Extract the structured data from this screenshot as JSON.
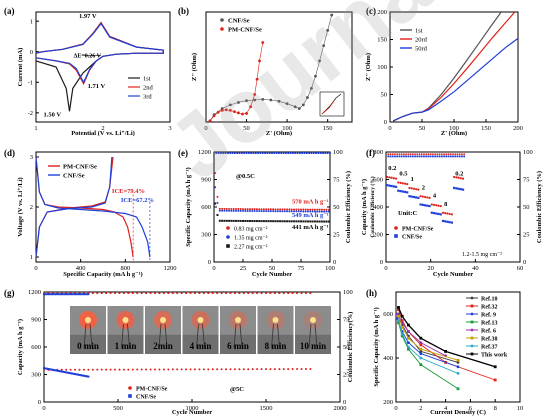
{
  "colors": {
    "black": "#1a1a1a",
    "red": "#e0201b",
    "blue": "#1f3fd8",
    "gray": "#555555"
  },
  "watermark": "Journal",
  "panels": {
    "a": {
      "letter": "(a)",
      "ylabel": "Current (mA)",
      "xlabel": "Potential (V vs. Li⁺/Li)",
      "yticks": [
        "-2",
        "-1",
        "0",
        "1"
      ],
      "xticks": [
        "1",
        "2",
        "3"
      ],
      "ann_top": "1.97 V",
      "ann_delta": "ΔE=0.26 V",
      "ann_low1": "1.50 V",
      "ann_low2": "1.71 V",
      "legend": [
        "1st",
        "2nd",
        "3rd"
      ]
    },
    "b": {
      "letter": "(b)",
      "ylabel": "Z'' (Ohm)",
      "xlabel": "Z' (Ohm)",
      "xticks": [
        "0",
        "50",
        "100",
        "150"
      ],
      "legend": [
        "CNF/Se",
        "PM-CNF/Se"
      ]
    },
    "c": {
      "letter": "(c)",
      "ylabel": "Z'' (Ohm)",
      "xlabel": "Z' (Ohm)",
      "xticks": [
        "0",
        "50",
        "100",
        "150",
        "200"
      ],
      "yticks": [
        "0",
        "50",
        "100",
        "150",
        "200"
      ],
      "legend": [
        "1st",
        "20rd",
        "50rd"
      ]
    },
    "d": {
      "letter": "(d)",
      "ylabel": "Voltage (V vs. Li⁺/Li)",
      "xlabel": "Specific Capacity (mA h g⁻¹)",
      "xticks": [
        "0",
        "400",
        "800",
        "1200"
      ],
      "yticks": [
        "1",
        "2",
        "3"
      ],
      "legend": [
        "PM-CNF/Se",
        "CNF/Se"
      ],
      "ice_red": "ICE=79.4%",
      "ice_blue": "ICE=67.2%"
    },
    "e": {
      "letter": "(e)",
      "ylabel": "Specific Capacity (mA h g⁻¹)",
      "ylabel_r": "Coulombic Efficiency (%)",
      "xlabel": "Cycle Number",
      "xticks": [
        "0",
        "25",
        "50",
        "75",
        "100"
      ],
      "yticks": [
        "0",
        "300",
        "600",
        "900",
        "1200"
      ],
      "yticks_r": [
        "0",
        "25",
        "50",
        "75",
        "100"
      ],
      "rate": "@0.5C",
      "ann_570": "570 mA h g⁻¹",
      "ann_549": "549 mA h g⁻¹",
      "ann_441": "441 mA h g⁻¹",
      "legend": [
        "0.83 mg cm⁻²",
        "1.35 mg cm⁻²",
        "2.27 mg cm⁻²"
      ]
    },
    "f": {
      "letter": "(f)",
      "ylabel": "Capacity (mA h g⁻¹)",
      "ylabel_l": "Coulombic Efficiency (%)",
      "ylabel_r": "Coulombic Efficiency (%)",
      "xlabel": "Cycle Number",
      "xticks": [
        "0",
        "20",
        "40",
        "60"
      ],
      "yticks": [
        "0",
        "200",
        "400",
        "600",
        "800"
      ],
      "yticks_r": [
        "0",
        "25",
        "50",
        "75",
        "100"
      ],
      "unit": "Unit:C",
      "loading": "1.2-1.5 mg cm⁻²",
      "rates": [
        "0.2",
        "0.5",
        "1",
        "2",
        "4",
        "8",
        "0.2"
      ],
      "legend": [
        "PM-CNF/Se",
        "CNF/Se"
      ]
    },
    "g": {
      "letter": "(g)",
      "ylabel": "Capacity (mA h g⁻¹)",
      "ylabel_r": "Coulombic Efficiency(%)",
      "xlabel": "Cycle Number",
      "xticks": [
        "0",
        "500",
        "1000",
        "1500",
        "2000"
      ],
      "yticks": [
        "0",
        "300",
        "600",
        "900",
        "1200"
      ],
      "yticks_r": [
        "0",
        "25",
        "50",
        "75",
        "100"
      ],
      "legend": [
        "PM-CNF/Se",
        "CNF/Se"
      ],
      "rate": "@5C",
      "photo_labels": [
        "0 min",
        "1 min",
        "2min",
        "4 min",
        "6 min",
        "8 min",
        "10 min"
      ]
    },
    "h": {
      "letter": "(h)",
      "ylabel": "Specific Capacity (mA h g⁻¹)",
      "xlabel": "Current Density (C)",
      "xticks": [
        "0",
        "2",
        "4",
        "6",
        "8",
        "10"
      ],
      "yticks": [
        "200",
        "400",
        "600"
      ],
      "legend": [
        "Ref.10",
        "Ref.32",
        "Ref. 9",
        "Ref.13",
        "Ref. 6",
        "Ref.38",
        "Ref.37",
        "This work"
      ],
      "legend_colors": [
        "#3a3a3a",
        "#e0201b",
        "#1f3fd8",
        "#1a9e3a",
        "#9b30b0",
        "#c8a000",
        "#2aa7c9",
        "#000000"
      ]
    }
  },
  "chart_data": [
    {
      "panel": "a",
      "type": "line",
      "xlabel": "Potential (V vs. Li⁺/Li)",
      "ylabel": "Current (mA)",
      "xlim": [
        1,
        3
      ],
      "ylim": [
        -2.3,
        1.3
      ],
      "series": [
        {
          "name": "1st",
          "x": [
            1.0,
            1.3,
            1.45,
            1.5,
            1.55,
            1.7,
            1.8,
            1.9,
            2.0,
            2.2,
            2.5,
            2.7,
            2.9,
            2.9,
            2.5,
            2.1,
            1.97,
            1.85,
            1.7,
            1.4,
            1.1,
            1.0
          ],
          "y": [
            -0.3,
            -0.5,
            -1.2,
            -1.95,
            -1.2,
            -0.7,
            -0.5,
            -0.3,
            -0.15,
            -0.08,
            -0.05,
            -0.05,
            -0.05,
            0.05,
            0.15,
            0.5,
            0.95,
            0.6,
            0.25,
            0.08,
            0.0,
            -0.05
          ]
        },
        {
          "name": "2nd",
          "x": [
            1.0,
            1.3,
            1.5,
            1.6,
            1.71,
            1.8,
            1.9,
            2.0,
            2.2,
            2.5,
            2.9,
            2.9,
            2.5,
            2.1,
            1.97,
            1.85,
            1.7,
            1.4,
            1.1,
            1.0
          ],
          "y": [
            -0.2,
            -0.3,
            -0.4,
            -0.6,
            -1.05,
            -0.6,
            -0.3,
            -0.15,
            -0.08,
            -0.05,
            -0.05,
            0.05,
            0.15,
            0.5,
            0.95,
            0.6,
            0.25,
            0.08,
            0.0,
            -0.05
          ]
        },
        {
          "name": "3rd",
          "x": [
            1.0,
            1.3,
            1.5,
            1.6,
            1.71,
            1.8,
            1.9,
            2.0,
            2.2,
            2.5,
            2.9,
            2.9,
            2.5,
            2.1,
            1.97,
            1.85,
            1.7,
            1.4,
            1.1,
            1.0
          ],
          "y": [
            -0.2,
            -0.3,
            -0.38,
            -0.55,
            -1.0,
            -0.58,
            -0.3,
            -0.15,
            -0.08,
            -0.05,
            -0.05,
            0.05,
            0.15,
            0.48,
            0.92,
            0.58,
            0.24,
            0.08,
            0.0,
            -0.05
          ]
        }
      ]
    },
    {
      "panel": "b",
      "type": "scatter",
      "xlabel": "Z' (Ohm)",
      "ylabel": "Z'' (Ohm)",
      "xlim": [
        0,
        180
      ],
      "ylim": [
        0,
        180
      ],
      "series": [
        {
          "name": "CNF/Se",
          "x": [
            5,
            10,
            20,
            30,
            40,
            50,
            60,
            70,
            80,
            90,
            100,
            110,
            115,
            120,
            125,
            130,
            135,
            140,
            145,
            150,
            155
          ],
          "y": [
            2,
            12,
            22,
            28,
            32,
            35,
            36,
            37,
            36,
            34,
            30,
            25,
            22,
            28,
            40,
            55,
            75,
            100,
            125,
            150,
            175
          ]
        },
        {
          "name": "PM-CNF/Se",
          "x": [
            5,
            10,
            15,
            20,
            25,
            30,
            35,
            40,
            45,
            50,
            55,
            60,
            63,
            66,
            70
          ],
          "y": [
            2,
            10,
            16,
            19,
            20,
            19,
            17,
            15,
            13,
            14,
            25,
            45,
            70,
            100,
            130
          ]
        }
      ]
    },
    {
      "panel": "c",
      "type": "line",
      "xlabel": "Z' (Ohm)",
      "ylabel": "Z'' (Ohm)",
      "xlim": [
        0,
        200
      ],
      "ylim": [
        0,
        200
      ],
      "series": [
        {
          "name": "1st",
          "x": [
            5,
            20,
            35,
            50,
            60,
            80,
            100,
            120,
            140,
            160,
            180
          ],
          "y": [
            2,
            10,
            16,
            18,
            25,
            50,
            80,
            112,
            145,
            178,
            210
          ]
        },
        {
          "name": "20rd",
          "x": [
            5,
            20,
            35,
            50,
            60,
            80,
            100,
            120,
            140,
            160,
            180,
            195
          ],
          "y": [
            2,
            10,
            16,
            18,
            24,
            45,
            70,
            97,
            125,
            153,
            180,
            200
          ]
        },
        {
          "name": "50rd",
          "x": [
            5,
            20,
            35,
            50,
            60,
            80,
            100,
            120,
            140,
            160,
            180,
            200
          ],
          "y": [
            2,
            10,
            16,
            18,
            22,
            38,
            55,
            75,
            95,
            115,
            135,
            152
          ]
        }
      ]
    },
    {
      "panel": "d",
      "type": "line",
      "xlabel": "Specific Capacity (mA h g⁻¹)",
      "ylabel": "Voltage (V vs. Li⁺/Li)",
      "xlim": [
        0,
        1200
      ],
      "ylim": [
        0.9,
        3.1
      ],
      "series": [
        {
          "name": "PM-CNF/Se discharge",
          "x": [
            0,
            30,
            80,
            200,
            400,
            600,
            700,
            780,
            820,
            850,
            870
          ],
          "y": [
            3.0,
            2.3,
            2.05,
            2.0,
            1.98,
            1.95,
            1.9,
            1.8,
            1.6,
            1.3,
            1.0
          ]
        },
        {
          "name": "PM-CNF/Se charge",
          "x": [
            0,
            30,
            100,
            300,
            500,
            620,
            660,
            690
          ],
          "y": [
            1.0,
            1.6,
            1.9,
            1.98,
            2.02,
            2.1,
            2.4,
            3.0
          ]
        },
        {
          "name": "CNF/Se discharge",
          "x": [
            0,
            30,
            80,
            200,
            400,
            600,
            800,
            900,
            950,
            1000,
            1020
          ],
          "y": [
            3.0,
            2.3,
            2.05,
            1.98,
            1.95,
            1.92,
            1.87,
            1.8,
            1.6,
            1.3,
            1.0
          ]
        },
        {
          "name": "CNF/Se charge",
          "x": [
            0,
            30,
            100,
            300,
            500,
            620,
            660,
            680
          ],
          "y": [
            1.0,
            1.6,
            1.9,
            1.97,
            2.0,
            2.08,
            2.4,
            3.0
          ]
        }
      ]
    },
    {
      "panel": "e",
      "type": "scatter",
      "xlabel": "Cycle Number",
      "ylabel": "Specific Capacity (mA h g⁻¹)",
      "xlim": [
        0,
        100
      ],
      "ylim": [
        0,
        1200
      ],
      "series": [
        {
          "name": "0.83 mg cm⁻²",
          "start": 1100,
          "settle": 580,
          "end": 570
        },
        {
          "name": "1.35 mg cm⁻²",
          "start": 900,
          "settle": 560,
          "end": 549
        },
        {
          "name": "2.27 mg cm⁻²",
          "start": 700,
          "settle": 450,
          "end": 441
        },
        {
          "name": "Coulombic Efficiency",
          "value": 99
        }
      ]
    },
    {
      "panel": "f",
      "type": "scatter",
      "xlabel": "Cycle Number",
      "ylabel": "Capacity (mA h g⁻¹)",
      "xlim": [
        0,
        60
      ],
      "ylim": [
        0,
        800
      ],
      "series": [
        {
          "name": "PM-CNF/Se",
          "stages": [
            [
              0,
              5,
              620
            ],
            [
              5,
              10,
              580
            ],
            [
              10,
              15,
              540
            ],
            [
              15,
              20,
              480
            ],
            [
              20,
              25,
              420
            ],
            [
              25,
              30,
              360
            ],
            [
              30,
              35,
              620
            ]
          ]
        },
        {
          "name": "CNF/Se",
          "stages": [
            [
              0,
              5,
              560
            ],
            [
              5,
              10,
              520
            ],
            [
              10,
              15,
              480
            ],
            [
              15,
              20,
              420
            ],
            [
              20,
              25,
              360
            ],
            [
              25,
              30,
              300
            ],
            [
              30,
              35,
              540
            ]
          ]
        }
      ]
    },
    {
      "panel": "g",
      "type": "scatter",
      "xlabel": "Cycle Number",
      "ylabel": "Capacity (mA h g⁻¹)",
      "xlim": [
        0,
        2000
      ],
      "ylim": [
        0,
        1300
      ],
      "series": [
        {
          "name": "PM-CNF/Se",
          "start": 380,
          "end": 390
        },
        {
          "name": "CNF/Se",
          "start": 400,
          "end": 300
        },
        {
          "name": "Coulombic Efficiency",
          "value": 99
        }
      ]
    },
    {
      "panel": "h",
      "type": "line",
      "xlabel": "Current Density (C)",
      "ylabel": "Specific Capacity (mA h g⁻¹)",
      "xlim": [
        0,
        10
      ],
      "ylim": [
        200,
        700
      ],
      "series": [
        {
          "name": "Ref.10",
          "x": [
            0.2,
            0.5,
            1,
            2,
            5
          ],
          "y": [
            600,
            550,
            500,
            430,
            380
          ]
        },
        {
          "name": "Ref.32",
          "x": [
            0.2,
            0.5,
            1,
            2,
            4,
            8
          ],
          "y": [
            620,
            570,
            520,
            460,
            380,
            300
          ]
        },
        {
          "name": "Ref. 9",
          "x": [
            0.1,
            0.5,
            1,
            2,
            5
          ],
          "y": [
            580,
            520,
            470,
            420,
            360
          ]
        },
        {
          "name": "Ref.13",
          "x": [
            0.2,
            0.5,
            1,
            2,
            5
          ],
          "y": [
            560,
            500,
            440,
            370,
            260
          ]
        },
        {
          "name": "Ref. 6",
          "x": [
            0.1,
            0.5,
            1,
            2,
            4
          ],
          "y": [
            600,
            560,
            520,
            470,
            410
          ]
        },
        {
          "name": "Ref.38",
          "x": [
            0.2,
            0.5,
            1,
            2,
            5
          ],
          "y": [
            590,
            540,
            490,
            440,
            390
          ]
        },
        {
          "name": "Ref.37",
          "x": [
            0.2,
            0.5,
            1,
            2,
            5
          ],
          "y": [
            570,
            510,
            450,
            400,
            330
          ]
        },
        {
          "name": "This work",
          "x": [
            0.2,
            0.5,
            1,
            2,
            4,
            8
          ],
          "y": [
            630,
            590,
            550,
            490,
            430,
            360
          ]
        }
      ]
    }
  ]
}
